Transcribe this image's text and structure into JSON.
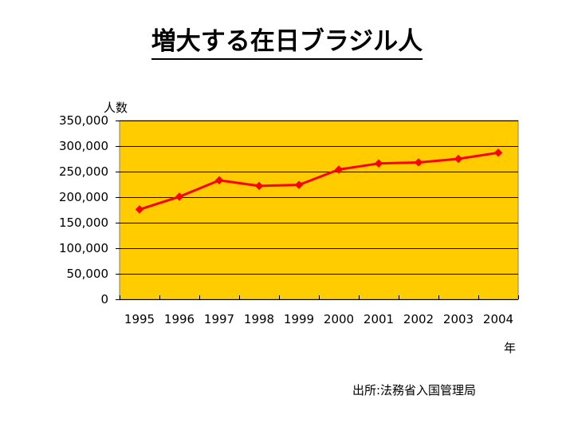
{
  "title": "増大する在日ブラジル人",
  "source": "出所:法務省入国管理局",
  "colors": {
    "plot_background": "#FFCC00",
    "series_line": "#FF0000",
    "gridline": "#000000"
  },
  "chart_data": {
    "type": "line",
    "title": "増大する在日ブラジル人",
    "xlabel": "年",
    "ylabel": "人数",
    "categories": [
      "1995",
      "1996",
      "1997",
      "1998",
      "1999",
      "2000",
      "2001",
      "2002",
      "2003",
      "2004"
    ],
    "series": [
      {
        "values": [
          176000,
          201000,
          233000,
          222000,
          224000,
          254000,
          266000,
          268000,
          275000,
          287000
        ]
      }
    ],
    "ylim": [
      0,
      350000
    ],
    "yticks": [
      "0",
      "50,000",
      "100,000",
      "150,000",
      "200,000",
      "250,000",
      "300,000",
      "350,000"
    ],
    "grid": true,
    "legend": "none",
    "marker": "diamond"
  }
}
